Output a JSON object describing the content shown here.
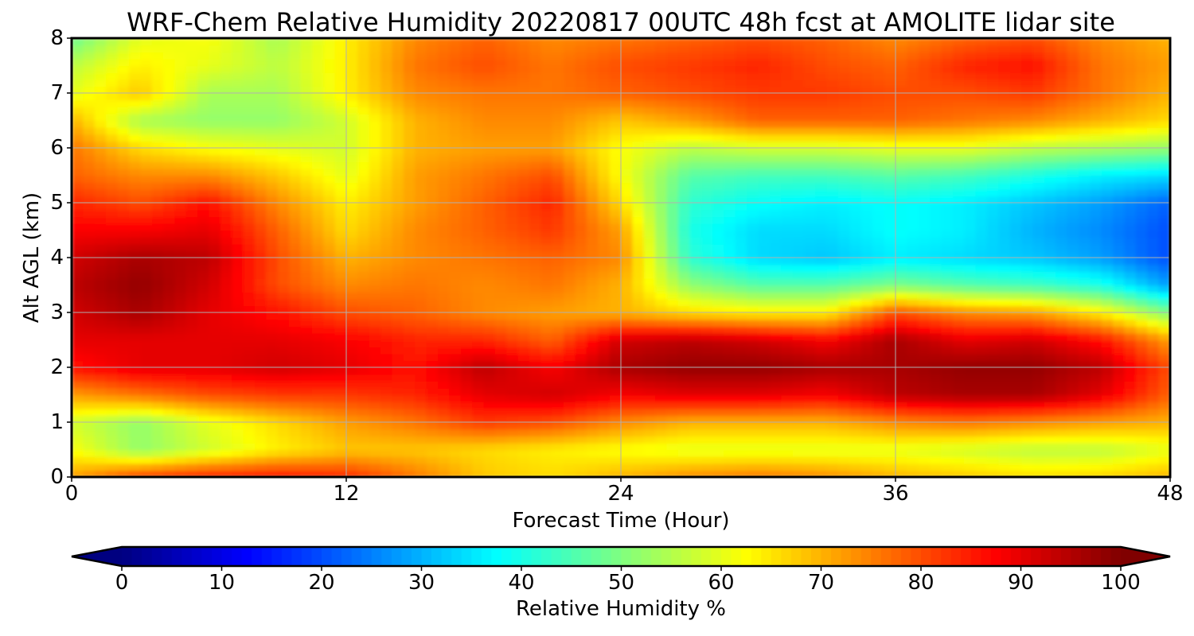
{
  "chart_data": {
    "type": "heatmap",
    "title": "WRF-Chem Relative Humidity 20220817 00UTC 48h fcst at AMOLITE lidar site",
    "xlabel": "Forecast Time (Hour)",
    "ylabel": "Alt AGL (km)",
    "xlim": [
      0,
      48
    ],
    "ylim": [
      0,
      8
    ],
    "x_ticks": [
      "0",
      "12",
      "24",
      "36",
      "48"
    ],
    "y_ticks": [
      "0",
      "1",
      "2",
      "3",
      "4",
      "5",
      "6",
      "7",
      "8"
    ],
    "grid": true,
    "colormap": "jet",
    "colorbar": {
      "label": "Relative Humidity %",
      "range": [
        0,
        100
      ],
      "ticks": [
        "0",
        "10",
        "20",
        "30",
        "40",
        "50",
        "60",
        "70",
        "80",
        "90",
        "100"
      ],
      "extend": "both",
      "orientation": "horizontal",
      "placement": "bottom"
    },
    "x": [
      0,
      3,
      6,
      9,
      12,
      15,
      18,
      21,
      24,
      27,
      30,
      33,
      36,
      39,
      42,
      45,
      48
    ],
    "y": [
      0,
      0.5,
      1,
      1.5,
      2,
      2.5,
      3,
      3.5,
      4,
      4.5,
      5,
      5.5,
      6,
      6.5,
      7,
      7.5,
      8
    ],
    "z": [
      [
        72,
        82,
        85,
        86,
        84,
        76,
        68,
        66,
        70,
        74,
        76,
        74,
        70,
        68,
        66,
        67,
        70
      ],
      [
        62,
        52,
        58,
        64,
        68,
        68,
        66,
        64,
        62,
        60,
        60,
        60,
        60,
        58,
        56,
        56,
        60
      ],
      [
        58,
        52,
        60,
        66,
        72,
        76,
        82,
        80,
        74,
        70,
        70,
        70,
        74,
        76,
        74,
        72,
        70
      ],
      [
        72,
        76,
        80,
        82,
        82,
        84,
        90,
        92,
        88,
        90,
        90,
        88,
        94,
        96,
        96,
        90,
        78
      ],
      [
        86,
        90,
        90,
        92,
        90,
        86,
        94,
        88,
        96,
        98,
        98,
        96,
        96,
        98,
        98,
        94,
        80
      ],
      [
        90,
        90,
        90,
        90,
        88,
        84,
        84,
        78,
        92,
        94,
        92,
        88,
        96,
        90,
        92,
        86,
        72
      ],
      [
        92,
        96,
        90,
        86,
        80,
        78,
        74,
        72,
        70,
        66,
        64,
        64,
        80,
        74,
        72,
        64,
        50
      ],
      [
        94,
        98,
        92,
        80,
        74,
        76,
        74,
        76,
        70,
        52,
        46,
        46,
        50,
        46,
        44,
        40,
        28
      ],
      [
        92,
        96,
        94,
        80,
        70,
        74,
        76,
        78,
        74,
        42,
        34,
        32,
        36,
        34,
        32,
        28,
        20
      ],
      [
        88,
        88,
        90,
        78,
        66,
        74,
        78,
        82,
        72,
        40,
        34,
        34,
        38,
        36,
        30,
        26,
        20
      ],
      [
        84,
        80,
        86,
        74,
        64,
        72,
        78,
        84,
        66,
        42,
        38,
        36,
        38,
        36,
        32,
        28,
        22
      ],
      [
        78,
        74,
        74,
        68,
        60,
        72,
        76,
        80,
        62,
        46,
        44,
        44,
        46,
        44,
        40,
        36,
        34
      ],
      [
        76,
        66,
        62,
        60,
        58,
        70,
        72,
        72,
        62,
        56,
        58,
        58,
        60,
        60,
        56,
        54,
        52
      ],
      [
        70,
        54,
        52,
        52,
        58,
        70,
        74,
        74,
        68,
        72,
        78,
        78,
        78,
        76,
        74,
        70,
        66
      ],
      [
        60,
        68,
        54,
        54,
        64,
        74,
        76,
        76,
        78,
        80,
        82,
        82,
        80,
        80,
        82,
        76,
        70
      ],
      [
        56,
        64,
        60,
        56,
        64,
        76,
        80,
        76,
        80,
        82,
        84,
        80,
        78,
        84,
        86,
        76,
        72
      ],
      [
        48,
        60,
        62,
        54,
        64,
        74,
        78,
        74,
        76,
        78,
        80,
        78,
        74,
        78,
        80,
        74,
        70
      ]
    ]
  }
}
